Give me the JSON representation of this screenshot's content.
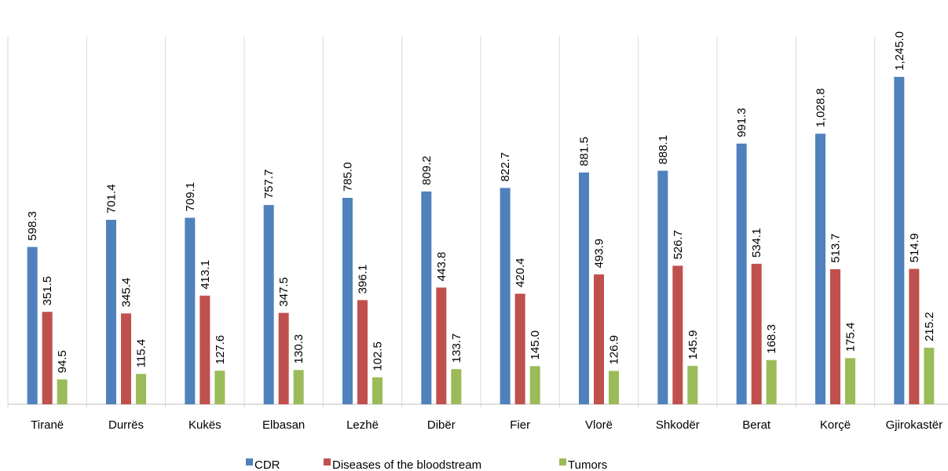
{
  "chart_data": {
    "type": "bar",
    "categories": [
      "Tiranë",
      "Durrës",
      "Kukës",
      "Elbasan",
      "Lezhë",
      "Dibër",
      "Fier",
      "Vlorë",
      "Shkodër",
      "Berat",
      "Korçë",
      "Gjirokastër"
    ],
    "series": [
      {
        "name": "CDR",
        "color": "#4f81bd",
        "values": [
          598.3,
          701.4,
          709.1,
          757.7,
          785.0,
          809.2,
          822.7,
          881.5,
          888.1,
          991.3,
          1028.8,
          1245.0
        ],
        "value_labels": [
          "598.3",
          "701.4",
          "709.1",
          "757.7",
          "785.0",
          "809.2",
          "822.7",
          "881.5",
          "888.1",
          "991.3",
          "1,028.8",
          "1,245.0"
        ]
      },
      {
        "name": "Diseases of the bloodstream",
        "color": "#c0504d",
        "values": [
          351.5,
          345.4,
          413.1,
          347.5,
          396.1,
          443.8,
          420.4,
          493.9,
          526.7,
          534.1,
          513.7,
          514.9
        ],
        "value_labels": [
          "351.5",
          "345.4",
          "413.1",
          "347.5",
          "396.1",
          "443.8",
          "420.4",
          "493.9",
          "526.7",
          "534.1",
          "513.7",
          "514.9"
        ]
      },
      {
        "name": "Tumors",
        "color": "#9bbb59",
        "values": [
          94.5,
          115.4,
          127.6,
          130.3,
          102.5,
          133.7,
          145.0,
          126.9,
          145.9,
          168.3,
          175.4,
          215.2
        ],
        "value_labels": [
          "94.5",
          "115.4",
          "127.6",
          "130.3",
          "102.5",
          "133.7",
          "145.0",
          "126.9",
          "145.9",
          "168.3",
          "175.4",
          "215.2"
        ]
      }
    ],
    "ylim": [
      0,
      1400
    ],
    "legend": "bottom"
  }
}
